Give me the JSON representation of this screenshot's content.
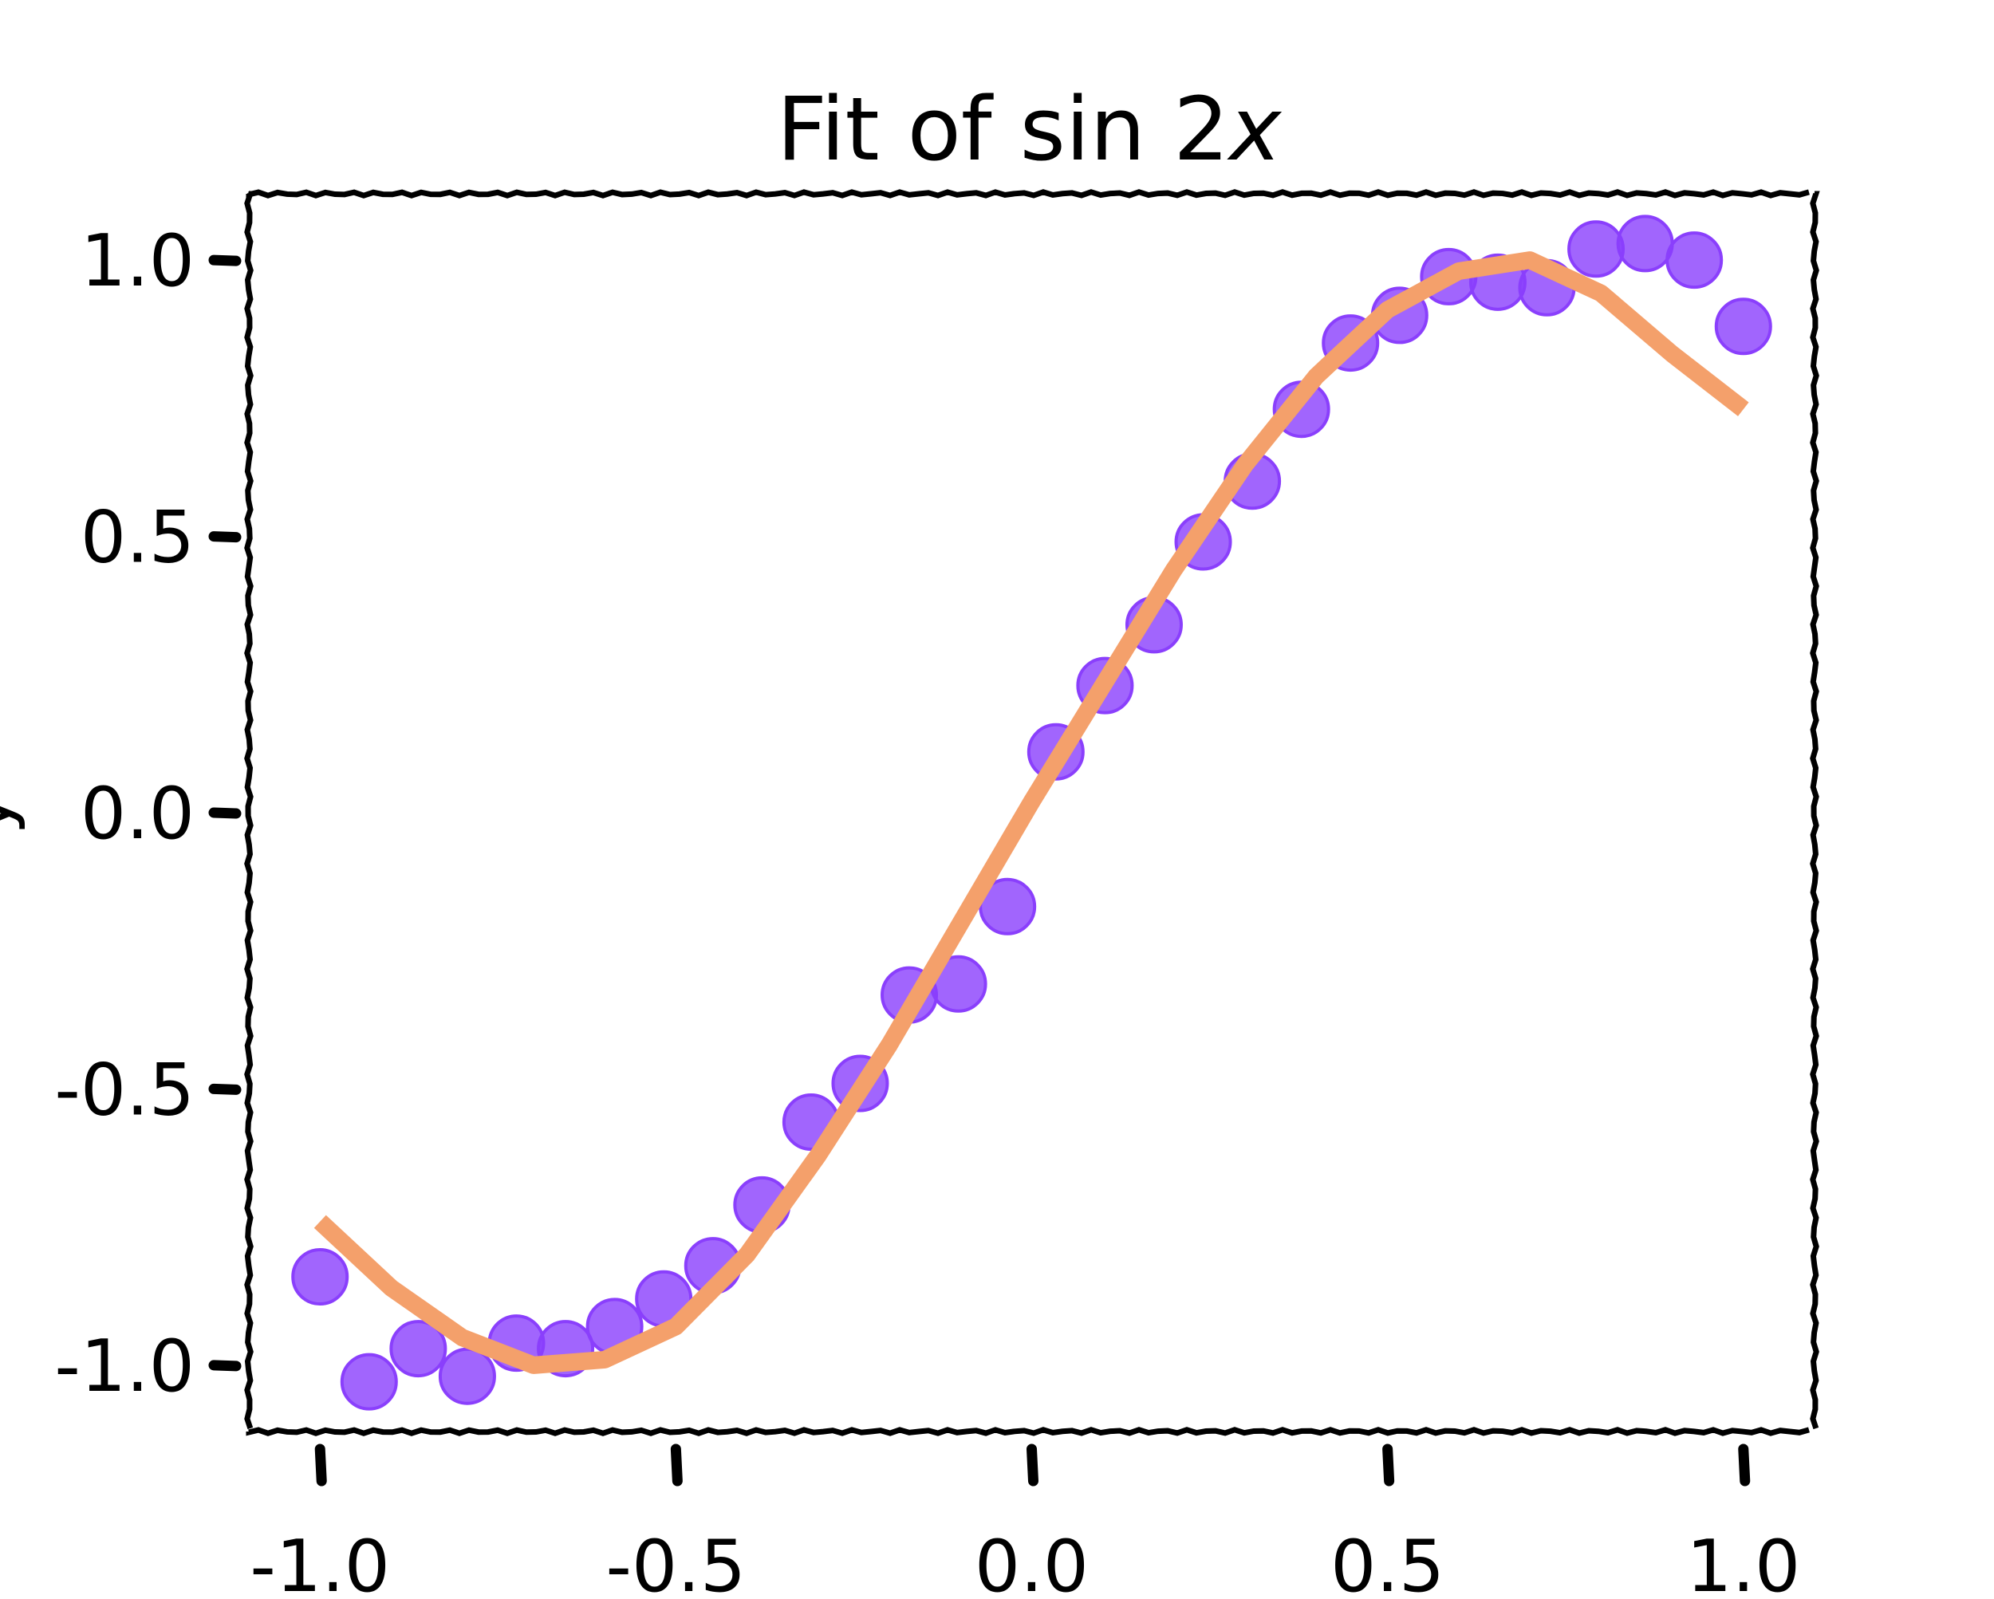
{
  "chart_data": {
    "type": "scatter",
    "title": "Fit of sin 2x",
    "title_parts": {
      "main": "Fit of sin 2",
      "var": "x"
    },
    "xlabel": "",
    "ylabel": "y",
    "xlim": [
      -1.1,
      1.1
    ],
    "ylim": [
      -1.12,
      1.12
    ],
    "xticks": [
      -1.0,
      -0.5,
      0.0,
      0.5,
      1.0
    ],
    "xtick_labels": [
      "-1.0",
      "-0.5",
      "0.0",
      "0.5",
      "1.0"
    ],
    "yticks": [
      1.0,
      0.5,
      0.0,
      -0.5,
      -1.0
    ],
    "ytick_labels": [
      "1.0",
      "0.5",
      "0.0",
      "-0.5",
      "-1.0"
    ],
    "grid": false,
    "legend": "none",
    "series": [
      {
        "kind": "scatter",
        "color": "#8a3ffc",
        "x": [
          -1.0,
          -0.931,
          -0.862,
          -0.793,
          -0.724,
          -0.655,
          -0.586,
          -0.517,
          -0.448,
          -0.379,
          -0.31,
          -0.241,
          -0.172,
          -0.103,
          -0.034,
          0.034,
          0.103,
          0.172,
          0.241,
          0.31,
          0.379,
          0.448,
          0.517,
          0.586,
          0.655,
          0.724,
          0.793,
          0.862,
          0.931,
          1.0
        ],
        "y": [
          -0.84,
          -1.03,
          -0.97,
          -1.02,
          -0.96,
          -0.97,
          -0.93,
          -0.88,
          -0.82,
          -0.71,
          -0.56,
          -0.49,
          -0.33,
          -0.31,
          -0.17,
          0.11,
          0.23,
          0.34,
          0.49,
          0.6,
          0.73,
          0.85,
          0.9,
          0.97,
          0.96,
          0.95,
          1.02,
          1.03,
          1.0,
          0.88
        ]
      },
      {
        "kind": "line",
        "color": "#f4a06b",
        "x": [
          -1.0,
          -0.9,
          -0.8,
          -0.7,
          -0.6,
          -0.5,
          -0.4,
          -0.3,
          -0.2,
          -0.1,
          0.0,
          0.1,
          0.2,
          0.3,
          0.4,
          0.5,
          0.6,
          0.7,
          0.8,
          0.9,
          1.0
        ],
        "y": [
          -0.74,
          -0.86,
          -0.95,
          -1.0,
          -0.99,
          -0.93,
          -0.8,
          -0.62,
          -0.42,
          -0.2,
          0.02,
          0.23,
          0.44,
          0.63,
          0.79,
          0.91,
          0.98,
          1.0,
          0.94,
          0.83,
          0.73
        ]
      }
    ]
  }
}
